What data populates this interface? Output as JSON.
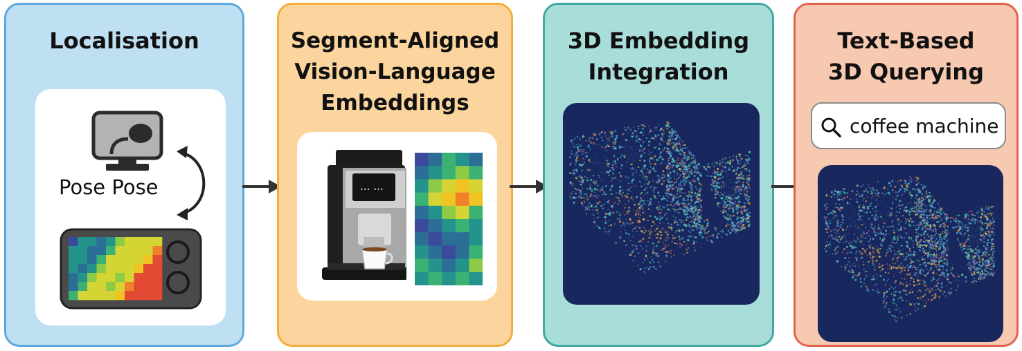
{
  "stages": [
    {
      "title": "Localisation",
      "pose_label": "Pose Pose"
    },
    {
      "title": "Segment-Aligned\nVision-Language\nEmbeddings"
    },
    {
      "title": "3D Embedding\nIntegration"
    },
    {
      "title": "Text-Based\n3D Querying",
      "query": "coffee machine"
    }
  ],
  "coffee_display": "••• •••",
  "icons": [
    "camera-icon",
    "rotate-arrow-icon",
    "tablet-heatmap-icon",
    "coffee-machine-image",
    "embedding-heatmap",
    "point-cloud",
    "search-icon",
    "flow-arrow-icon"
  ],
  "colors": {
    "panel1": "#bfdff3",
    "panel2": "#fcd59e",
    "panel3": "#a8ddda",
    "panel4": "#f7c9b1",
    "point_cloud_bg": "#18285f"
  }
}
